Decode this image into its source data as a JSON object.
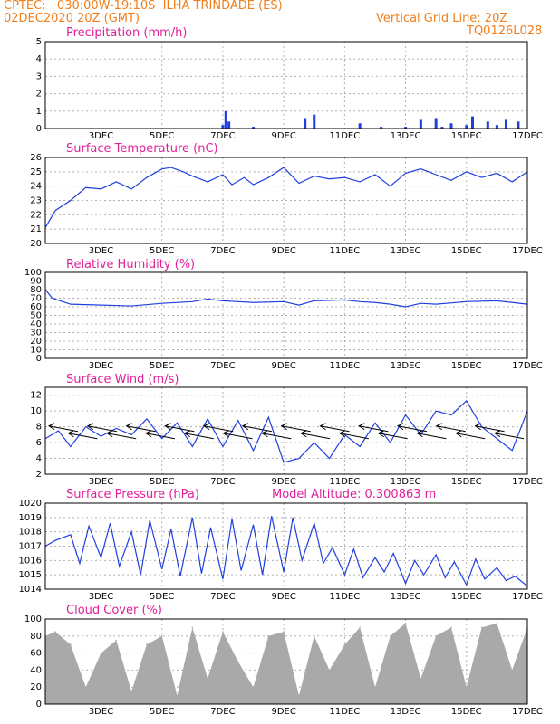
{
  "header": {
    "line1": "CPTEC:   030:00W-19:10S  ILHA TRINDADE (ES)",
    "line2": "02DEC2020 20Z (GMT)",
    "grid_note": "Vertical Grid Line: 20Z",
    "code": "TQ0126L028"
  },
  "x_axis": {
    "labels": [
      "3DEC",
      "5DEC",
      "7DEC",
      "9DEC",
      "11DEC",
      "13DEC",
      "15DEC",
      "17DEC"
    ],
    "label_positions_days": [
      1,
      3,
      5,
      7,
      9,
      11,
      13,
      15
    ],
    "range_days": [
      -0.83,
      15
    ]
  },
  "colors": {
    "line": "#1f3fe0",
    "cloud": "#a9a9a9",
    "title": "#e0209a",
    "header": "#f07f1e",
    "grid": "#b0b0b0"
  },
  "chart_data": [
    {
      "type": "bar",
      "title": "Precipitation (mm/h)",
      "ylim": [
        0,
        5
      ],
      "yticks": [
        "0",
        "1",
        "2",
        "3",
        "4",
        "5"
      ],
      "x": [
        5.0,
        5.1,
        5.2,
        6.0,
        7.7,
        8.0,
        9.5,
        10.2,
        11.0,
        11.5,
        12.0,
        12.2,
        12.5,
        13.0,
        13.2,
        13.7,
        14.0,
        14.3,
        14.7
      ],
      "values": [
        0.2,
        1.0,
        0.4,
        0.1,
        0.6,
        0.8,
        0.3,
        0.1,
        0.1,
        0.5,
        0.6,
        0.1,
        0.3,
        0.2,
        0.7,
        0.4,
        0.2,
        0.5,
        0.4
      ]
    },
    {
      "type": "line",
      "title": "Surface Temperature (nC)",
      "ylim": [
        20,
        26
      ],
      "yticks": [
        "20",
        "21",
        "22",
        "23",
        "24",
        "25",
        "26"
      ],
      "x": [
        -0.83,
        -0.5,
        0,
        0.5,
        1,
        1.5,
        2,
        2.5,
        3,
        3.3,
        3.7,
        4,
        4.5,
        5,
        5.3,
        5.7,
        6,
        6.5,
        7,
        7.5,
        8,
        8.5,
        9,
        9.5,
        10,
        10.5,
        11,
        11.5,
        12,
        12.5,
        13,
        13.5,
        14,
        14.5,
        15
      ],
      "values": [
        21.1,
        22.3,
        23.0,
        23.9,
        23.8,
        24.3,
        23.8,
        24.6,
        25.2,
        25.3,
        25.0,
        24.7,
        24.3,
        24.8,
        24.1,
        24.6,
        24.1,
        24.6,
        25.3,
        24.2,
        24.7,
        24.5,
        24.6,
        24.3,
        24.8,
        24.0,
        24.9,
        25.2,
        24.8,
        24.4,
        25.0,
        24.6,
        24.9,
        24.3,
        25.0
      ]
    },
    {
      "type": "line",
      "title": "Relative Humidity (%)",
      "ylim": [
        0,
        100
      ],
      "yticks": [
        "0",
        "10",
        "20",
        "30",
        "40",
        "50",
        "60",
        "70",
        "80",
        "90",
        "100"
      ],
      "x": [
        -0.83,
        -0.6,
        0,
        1,
        2,
        3,
        4,
        4.5,
        5,
        6,
        7,
        7.5,
        8,
        9,
        9.5,
        10,
        10.5,
        11,
        11.5,
        12,
        13,
        14,
        15
      ],
      "values": [
        80,
        70,
        63,
        62,
        61,
        64,
        66,
        69,
        67,
        65,
        66,
        62,
        67,
        68,
        66,
        65,
        63,
        60,
        64,
        63,
        66,
        67,
        63
      ]
    },
    {
      "type": "line",
      "title": "Surface Wind (m/s)",
      "ylim": [
        2,
        13
      ],
      "yticks": [
        "2",
        "4",
        "6",
        "8",
        "10",
        "12"
      ],
      "x": [
        -0.83,
        -0.4,
        0,
        0.5,
        1,
        1.5,
        2,
        2.5,
        3,
        3.5,
        4,
        4.5,
        5,
        5.5,
        6,
        6.5,
        7,
        7.5,
        8,
        8.5,
        9,
        9.5,
        10,
        10.5,
        11,
        11.5,
        12,
        12.5,
        13,
        13.5,
        14,
        14.5,
        15
      ],
      "values": [
        6.5,
        7.5,
        5.5,
        8.0,
        6.8,
        7.8,
        7.0,
        9.0,
        6.5,
        8.5,
        5.5,
        9.0,
        5.5,
        8.8,
        5.0,
        9.2,
        3.5,
        4.0,
        6.0,
        4.0,
        7.0,
        5.5,
        8.5,
        6.0,
        9.5,
        7.0,
        10.0,
        9.5,
        11.3,
        8.0,
        6.5,
        5.0,
        10.0
      ],
      "arrows": 24
    },
    {
      "type": "line",
      "title": "Surface Pressure (hPa)",
      "note": "Model Altitude: 0.300863 m",
      "ylim": [
        1014,
        1020
      ],
      "yticks": [
        "1014",
        "1015",
        "1016",
        "1017",
        "1018",
        "1019",
        "1020"
      ],
      "x": [
        -0.83,
        -0.5,
        0,
        0.3,
        0.6,
        1,
        1.3,
        1.6,
        2,
        2.3,
        2.6,
        3,
        3.3,
        3.6,
        4,
        4.3,
        4.6,
        5,
        5.3,
        5.6,
        6,
        6.3,
        6.6,
        7,
        7.3,
        7.6,
        8,
        8.3,
        8.6,
        9,
        9.3,
        9.6,
        10,
        10.3,
        10.6,
        11,
        11.3,
        11.6,
        12,
        12.3,
        12.6,
        13,
        13.3,
        13.6,
        14,
        14.3,
        14.6,
        15
      ],
      "values": [
        1017.0,
        1017.4,
        1017.8,
        1015.8,
        1018.4,
        1016.2,
        1018.6,
        1015.6,
        1018.0,
        1015.0,
        1018.8,
        1015.4,
        1018.2,
        1014.9,
        1019.0,
        1015.1,
        1018.3,
        1014.7,
        1018.9,
        1015.3,
        1018.5,
        1015.0,
        1019.1,
        1015.2,
        1019.0,
        1016.0,
        1018.6,
        1015.8,
        1016.9,
        1015.0,
        1016.8,
        1014.8,
        1016.2,
        1015.2,
        1016.5,
        1014.4,
        1016.0,
        1015.0,
        1016.4,
        1014.8,
        1015.9,
        1014.3,
        1016.1,
        1014.7,
        1015.5,
        1014.6,
        1014.9,
        1014.2
      ]
    },
    {
      "type": "bar",
      "title": "Cloud Cover (%)",
      "ylim": [
        0,
        100
      ],
      "yticks": [
        "0",
        "20",
        "40",
        "60",
        "80",
        "100"
      ],
      "x": [
        -0.83,
        -0.5,
        0,
        0.5,
        1,
        1.5,
        2,
        2.5,
        3,
        3.5,
        4,
        4.5,
        5,
        5.5,
        6,
        6.5,
        7,
        7.5,
        8,
        8.5,
        9,
        9.5,
        10,
        10.5,
        11,
        11.5,
        12,
        12.5,
        13,
        13.5,
        14,
        14.5,
        15
      ],
      "values": [
        80,
        85,
        70,
        20,
        60,
        75,
        15,
        70,
        80,
        10,
        90,
        30,
        85,
        50,
        20,
        80,
        85,
        10,
        80,
        40,
        70,
        90,
        20,
        80,
        95,
        30,
        80,
        90,
        20,
        90,
        95,
        40,
        90
      ]
    }
  ]
}
